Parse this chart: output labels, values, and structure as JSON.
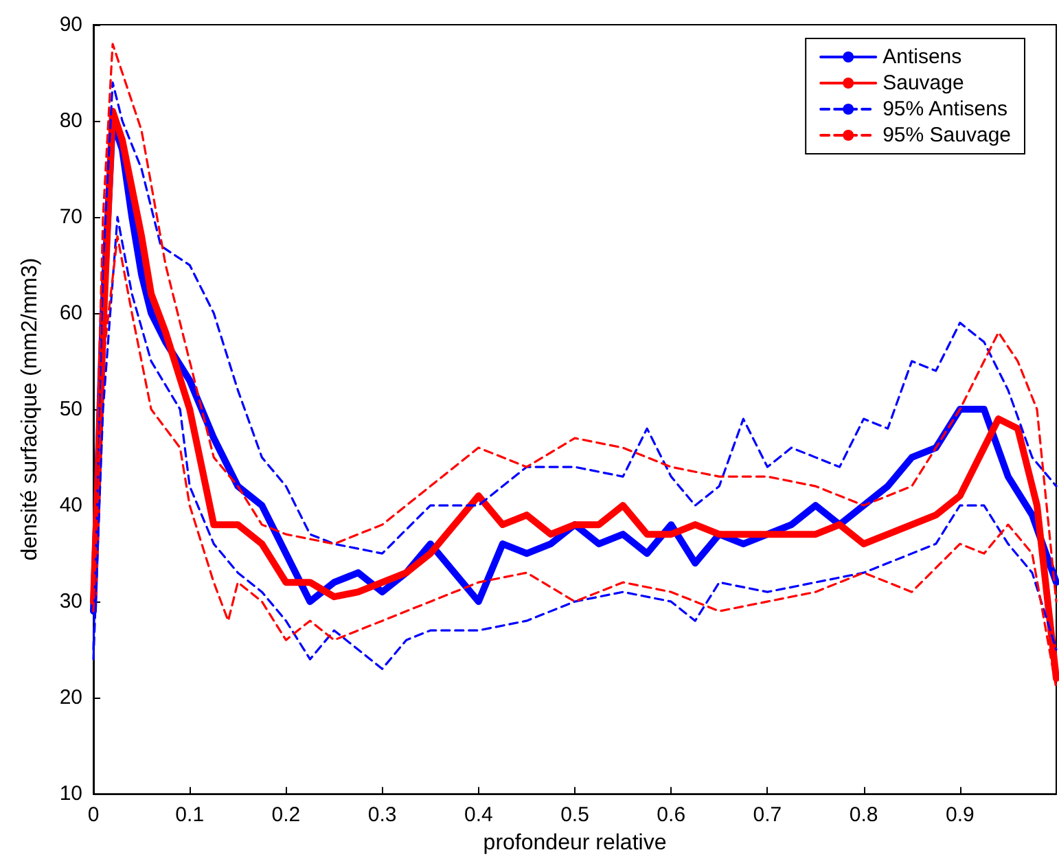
{
  "chart_data": {
    "type": "line",
    "xlabel": "profondeur relative",
    "ylabel": "densité surfacique (mm2/mm3)",
    "xlim": [
      0,
      1
    ],
    "xticks": [
      0,
      0.1,
      0.2,
      0.3,
      0.4,
      0.5,
      0.6,
      0.7,
      0.8,
      0.9
    ],
    "ylim": [
      10,
      90
    ],
    "yticks": [
      10,
      20,
      30,
      40,
      50,
      60,
      70,
      80,
      90
    ],
    "grid": false,
    "legend": "top right",
    "marker": "none",
    "series": [
      {
        "name": "Antisens",
        "color": "#0000ff",
        "line_style": "solid",
        "x": [
          0,
          0.01,
          0.02,
          0.03,
          0.04,
          0.05,
          0.06,
          0.075,
          0.1,
          0.125,
          0.15,
          0.175,
          0.2,
          0.225,
          0.25,
          0.275,
          0.3,
          0.325,
          0.35,
          0.375,
          0.4,
          0.425,
          0.45,
          0.475,
          0.5,
          0.525,
          0.55,
          0.575,
          0.6,
          0.625,
          0.65,
          0.675,
          0.7,
          0.725,
          0.75,
          0.775,
          0.8,
          0.825,
          0.85,
          0.875,
          0.9,
          0.925,
          0.95,
          0.975,
          1
        ],
        "values": [
          29,
          60,
          80,
          77,
          70,
          64,
          60,
          57,
          53,
          47,
          42,
          40,
          35,
          30,
          32,
          33,
          31,
          33,
          36,
          33,
          30,
          36,
          35,
          36,
          38,
          36,
          37,
          35,
          38,
          34,
          37,
          36,
          37,
          38,
          40,
          38,
          40,
          42,
          45,
          46,
          50,
          50,
          43,
          39,
          32
        ]
      },
      {
        "name": "Sauvage",
        "color": "#ff0000",
        "line_style": "solid",
        "x": [
          0,
          0.01,
          0.02,
          0.03,
          0.04,
          0.05,
          0.06,
          0.075,
          0.1,
          0.125,
          0.15,
          0.175,
          0.2,
          0.225,
          0.25,
          0.275,
          0.3,
          0.325,
          0.35,
          0.375,
          0.4,
          0.425,
          0.45,
          0.475,
          0.5,
          0.525,
          0.55,
          0.575,
          0.6,
          0.625,
          0.65,
          0.675,
          0.7,
          0.725,
          0.75,
          0.775,
          0.8,
          0.825,
          0.85,
          0.875,
          0.9,
          0.925,
          0.94,
          0.96,
          0.98,
          1
        ],
        "values": [
          30,
          58,
          81,
          78,
          73,
          68,
          62,
          58,
          50,
          38,
          38,
          36,
          32,
          32,
          30.5,
          31,
          32,
          33,
          35,
          38,
          41,
          38,
          39,
          37,
          38,
          38,
          40,
          37,
          37,
          38,
          37,
          37,
          37,
          37,
          37,
          38,
          36,
          37,
          38,
          39,
          41,
          46,
          49,
          48,
          40,
          22
        ]
      },
      {
        "name": "95% Antisens",
        "color": "#0000ff",
        "line_style": "dashed",
        "x": [
          0,
          0.01,
          0.02,
          0.03,
          0.05,
          0.07,
          0.1,
          0.125,
          0.15,
          0.175,
          0.2,
          0.225,
          0.25,
          0.3,
          0.35,
          0.4,
          0.45,
          0.5,
          0.55,
          0.575,
          0.6,
          0.625,
          0.65,
          0.675,
          0.7,
          0.725,
          0.75,
          0.775,
          0.8,
          0.825,
          0.85,
          0.875,
          0.9,
          0.925,
          0.95,
          0.975,
          1
        ],
        "values": [
          25,
          65,
          84,
          80,
          75,
          67,
          65,
          60,
          52,
          45,
          42,
          37,
          36,
          35,
          40,
          40,
          44,
          44,
          43,
          48,
          43,
          40,
          42,
          49,
          44,
          46,
          45,
          44,
          49,
          48,
          55,
          54,
          59,
          57,
          52,
          45,
          42
        ]
      },
      {
        "color": "#0000ff",
        "line_style": "dashed",
        "x": [
          0,
          0.01,
          0.025,
          0.04,
          0.06,
          0.09,
          0.1,
          0.125,
          0.15,
          0.175,
          0.2,
          0.225,
          0.25,
          0.3,
          0.325,
          0.35,
          0.4,
          0.45,
          0.5,
          0.55,
          0.6,
          0.625,
          0.65,
          0.7,
          0.75,
          0.8,
          0.85,
          0.875,
          0.9,
          0.925,
          0.95,
          0.975,
          1
        ],
        "values": [
          24,
          50,
          70,
          62,
          55,
          50,
          42,
          36,
          33,
          31,
          28,
          24,
          27,
          23,
          26,
          27,
          27,
          28,
          30,
          31,
          30,
          28,
          32,
          31,
          32,
          33,
          35,
          36,
          40,
          40,
          36,
          33,
          25
        ]
      },
      {
        "name": "95% Sauvage",
        "color": "#ff0000",
        "line_style": "dashed",
        "x": [
          0,
          0.01,
          0.02,
          0.03,
          0.05,
          0.075,
          0.1,
          0.125,
          0.15,
          0.175,
          0.2,
          0.25,
          0.3,
          0.35,
          0.4,
          0.45,
          0.5,
          0.55,
          0.6,
          0.65,
          0.7,
          0.75,
          0.8,
          0.85,
          0.9,
          0.925,
          0.94,
          0.96,
          0.98,
          1
        ],
        "values": [
          32,
          70,
          88,
          85,
          79,
          65,
          55,
          45,
          42,
          38,
          37,
          36,
          38,
          42,
          46,
          44,
          47,
          46,
          44,
          43,
          43,
          42,
          40,
          42,
          50,
          55,
          58,
          55,
          50,
          30
        ]
      },
      {
        "color": "#ff0000",
        "line_style": "dashed",
        "x": [
          0,
          0.01,
          0.025,
          0.04,
          0.06,
          0.09,
          0.1,
          0.125,
          0.14,
          0.15,
          0.175,
          0.2,
          0.225,
          0.25,
          0.3,
          0.35,
          0.4,
          0.45,
          0.5,
          0.55,
          0.6,
          0.65,
          0.7,
          0.75,
          0.8,
          0.85,
          0.9,
          0.925,
          0.95,
          0.975,
          1
        ],
        "values": [
          29,
          55,
          68,
          60,
          50,
          46,
          40,
          32,
          28,
          32,
          30,
          26,
          28,
          26,
          28,
          30,
          32,
          33,
          30,
          32,
          31,
          29,
          30,
          31,
          33,
          31,
          36,
          35,
          38,
          35,
          21
        ]
      }
    ]
  }
}
